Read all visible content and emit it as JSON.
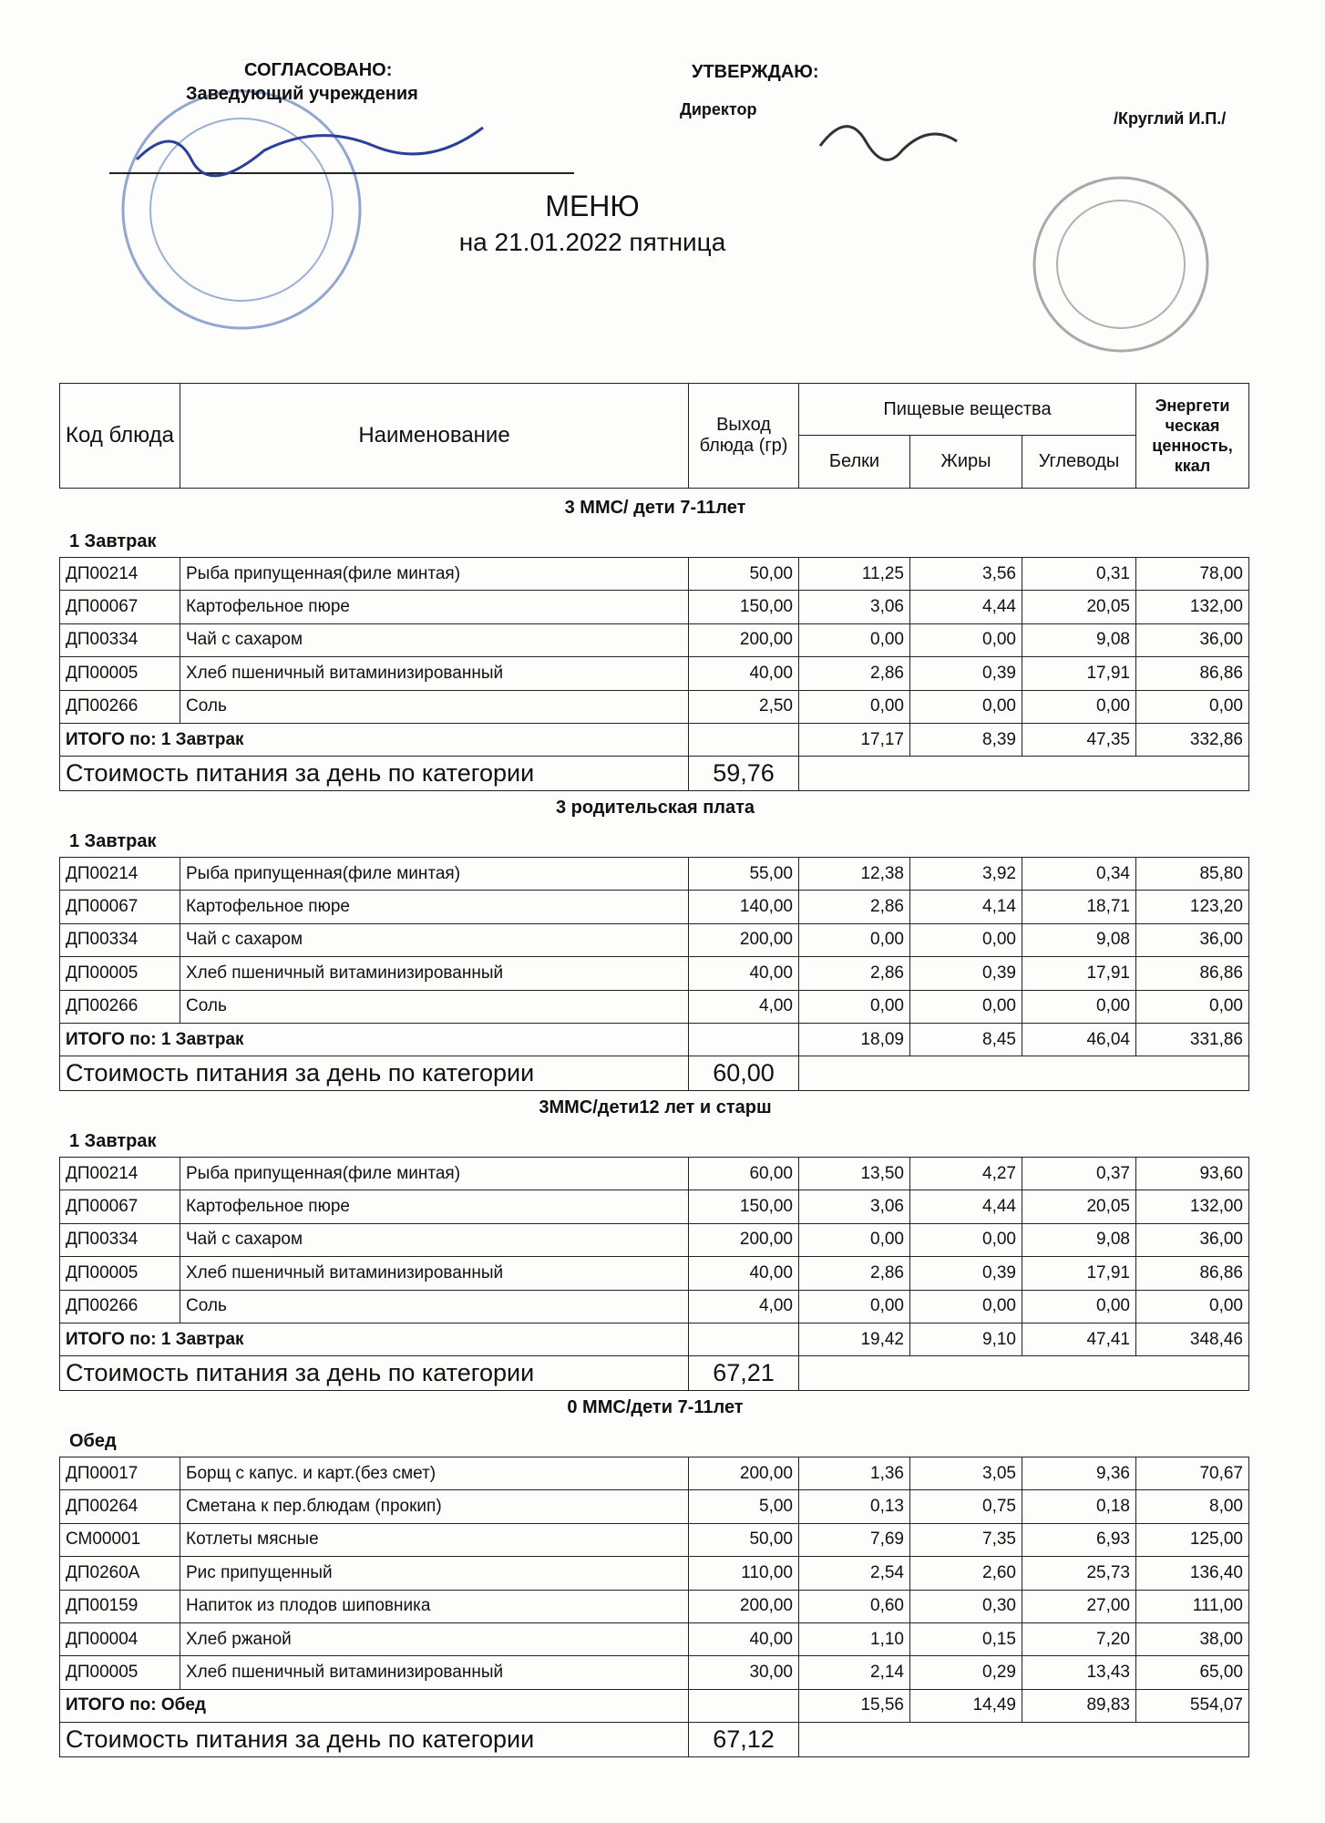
{
  "header": {
    "approved_label": "СОГЛАСОВАНО:",
    "approved_position": "Заведующий  учреждения",
    "confirm_label": "УТВЕРЖДАЮ:",
    "confirm_position": "Директор",
    "confirm_name": "/Круглий И.П./",
    "title": "МЕНЮ",
    "date": "на 21.01.2022  пятница"
  },
  "table": {
    "columns": {
      "code": "Код блюда",
      "name": "Наименование",
      "yield": "Выход блюда (гр)",
      "nutrients": "Пищевые вещества",
      "protein": "Белки",
      "fat": "Жиры",
      "carbs": "Углеводы",
      "energy": "Энергети ческая ценность, ккал"
    },
    "sections": [
      {
        "title": "3 ММС/ дети 7-11лет",
        "meal": "1 Завтрак",
        "rows": [
          [
            "ДП00214",
            "Рыба припущенная(филе минтая)",
            "50,00",
            "11,25",
            "3,56",
            "0,31",
            "78,00"
          ],
          [
            "ДП00067",
            "Картофельное пюре",
            "150,00",
            "3,06",
            "4,44",
            "20,05",
            "132,00"
          ],
          [
            "ДП00334",
            "Чай с сахаром",
            "200,00",
            "0,00",
            "0,00",
            "9,08",
            "36,00"
          ],
          [
            "ДП00005",
            "Хлеб пшеничный витаминизированный",
            "40,00",
            "2,86",
            "0,39",
            "17,91",
            "86,86"
          ],
          [
            "ДП00266",
            "Соль",
            "2,50",
            "0,00",
            "0,00",
            "0,00",
            "0,00"
          ]
        ],
        "total": {
          "label": "ИТОГО по: 1 Завтрак",
          "values": [
            "17,17",
            "8,39",
            "47,35",
            "332,86"
          ]
        },
        "cost_label": "Стоимость питания за день по категории",
        "cost": "59,76"
      },
      {
        "title": "3 родительская плата",
        "meal": "1 Завтрак",
        "rows": [
          [
            "ДП00214",
            "Рыба припущенная(филе минтая)",
            "55,00",
            "12,38",
            "3,92",
            "0,34",
            "85,80"
          ],
          [
            "ДП00067",
            "Картофельное пюре",
            "140,00",
            "2,86",
            "4,14",
            "18,71",
            "123,20"
          ],
          [
            "ДП00334",
            "Чай с сахаром",
            "200,00",
            "0,00",
            "0,00",
            "9,08",
            "36,00"
          ],
          [
            "ДП00005",
            "Хлеб пшеничный витаминизированный",
            "40,00",
            "2,86",
            "0,39",
            "17,91",
            "86,86"
          ],
          [
            "ДП00266",
            "Соль",
            "4,00",
            "0,00",
            "0,00",
            "0,00",
            "0,00"
          ]
        ],
        "total": {
          "label": "ИТОГО по: 1 Завтрак",
          "values": [
            "18,09",
            "8,45",
            "46,04",
            "331,86"
          ]
        },
        "cost_label": "Стоимость питания за день по категории",
        "cost": "60,00"
      },
      {
        "title": "3ММС/дети12 лет и старш",
        "meal": "1 Завтрак",
        "rows": [
          [
            "ДП00214",
            "Рыба припущенная(филе минтая)",
            "60,00",
            "13,50",
            "4,27",
            "0,37",
            "93,60"
          ],
          [
            "ДП00067",
            "Картофельное пюре",
            "150,00",
            "3,06",
            "4,44",
            "20,05",
            "132,00"
          ],
          [
            "ДП00334",
            "Чай с сахаром",
            "200,00",
            "0,00",
            "0,00",
            "9,08",
            "36,00"
          ],
          [
            "ДП00005",
            "Хлеб пшеничный витаминизированный",
            "40,00",
            "2,86",
            "0,39",
            "17,91",
            "86,86"
          ],
          [
            "ДП00266",
            "Соль",
            "4,00",
            "0,00",
            "0,00",
            "0,00",
            "0,00"
          ]
        ],
        "total": {
          "label": "ИТОГО по: 1 Завтрак",
          "values": [
            "19,42",
            "9,10",
            "47,41",
            "348,46"
          ]
        },
        "cost_label": "Стоимость питания за день по категории",
        "cost": "67,21"
      },
      {
        "title": "0 ММС/дети 7-11лет",
        "meal": "Обед",
        "rows": [
          [
            "ДП00017",
            "Борщ с капус. и карт.(без смет)",
            "200,00",
            "1,36",
            "3,05",
            "9,36",
            "70,67"
          ],
          [
            "ДП00264",
            "Сметана к пер.блюдам (прокип)",
            "5,00",
            "0,13",
            "0,75",
            "0,18",
            "8,00"
          ],
          [
            "СМ00001",
            "Котлеты мясные",
            "50,00",
            "7,69",
            "7,35",
            "6,93",
            "125,00"
          ],
          [
            "ДП0260А",
            "Рис припущенный",
            "110,00",
            "2,54",
            "2,60",
            "25,73",
            "136,40"
          ],
          [
            "ДП00159",
            "Напиток из плодов шиповника",
            "200,00",
            "0,60",
            "0,30",
            "27,00",
            "111,00"
          ],
          [
            "ДП00004",
            "Хлеб ржаной",
            "40,00",
            "1,10",
            "0,15",
            "7,20",
            "38,00"
          ],
          [
            "ДП00005",
            "Хлеб пшеничный витаминизированный",
            "30,00",
            "2,14",
            "0,29",
            "13,43",
            "65,00"
          ]
        ],
        "total": {
          "label": "ИТОГО по: Обед",
          "values": [
            "15,56",
            "14,49",
            "89,83",
            "554,07"
          ]
        },
        "cost_label": "Стоимость питания за день по категории",
        "cost": "67,12"
      }
    ]
  }
}
